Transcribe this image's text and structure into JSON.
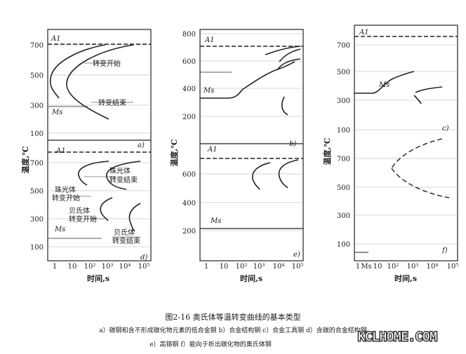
{
  "figure": {
    "caption": "图2-16  奥氏体等温转变曲线的基本类型",
    "subcaption_line1": "a）碳钢和含不形成碳化物元素的低合金钢   b）合金结构钢   c）合金工具钢   d）含碳的合金结构钢",
    "subcaption_line2": "e）高铬钢   f）能向于析出碳化物的奥氏体钢",
    "watermark": "KCLHOME.COM"
  },
  "chart_data": [
    {
      "type": "line",
      "panel": "a",
      "ylabel": "温度,℃",
      "ylim": [
        0,
        800
      ],
      "yticks": [
        "100",
        "300",
        "500",
        "700"
      ],
      "annotations": [
        "A1",
        "Ms",
        "转变开始",
        "转变结束",
        "a)"
      ],
      "series": []
    },
    {
      "type": "line",
      "panel": "d",
      "xlabel": "时间,s",
      "xscale": "log",
      "xlim": [
        1,
        100000
      ],
      "xticks": [
        "1",
        "10",
        "10²",
        "10³",
        "10⁴",
        "10⁵"
      ],
      "ylim": [
        0,
        800
      ],
      "yticks": [
        "100",
        "300",
        "500",
        "700"
      ],
      "annotations": [
        "A1",
        "Ms",
        "珠光体",
        "转变结束",
        "珠光体",
        "转变开始",
        "贝氏体",
        "转变开始",
        "贝氏体",
        "转变结束",
        "d)"
      ],
      "series": []
    },
    {
      "type": "line",
      "panel": "b",
      "ylabel": "温度,℃",
      "ylim": [
        0,
        800
      ],
      "yticks": [
        "200",
        "400",
        "600",
        "800"
      ],
      "annotations": [
        "A1",
        "Ms",
        "b)"
      ],
      "series": []
    },
    {
      "type": "line",
      "panel": "e",
      "xlabel": "时间,s",
      "xscale": "log",
      "xlim": [
        1,
        100000
      ],
      "xticks": [
        "1",
        "10",
        "10²",
        "10³",
        "10⁴",
        "10⁵"
      ],
      "ylim": [
        0,
        800
      ],
      "yticks": [
        "200",
        "400",
        "600"
      ],
      "annotations": [
        "A1",
        "Ms",
        "e)"
      ],
      "series": []
    },
    {
      "type": "line",
      "panel": "c",
      "ylabel": "温度,℃",
      "ylim": [
        0,
        800
      ],
      "yticks": [
        "100",
        "300",
        "500",
        "700"
      ],
      "annotations": [
        "A1",
        "Ms",
        "c)"
      ],
      "series": []
    },
    {
      "type": "line",
      "panel": "f",
      "xlabel": "时间,s",
      "xscale": "log",
      "xlim": [
        1,
        100000
      ],
      "xticks": [
        "1",
        "Ms",
        "10",
        "10²",
        "10³",
        "10⁴",
        "10⁵"
      ],
      "ylim": [
        0,
        800
      ],
      "yticks": [
        "100",
        "300",
        "500",
        "700"
      ],
      "annotations": [
        "f)"
      ],
      "series": []
    }
  ]
}
